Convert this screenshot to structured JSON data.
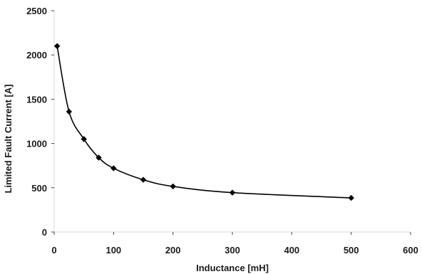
{
  "chart_data": {
    "type": "line",
    "xlabel": "Inductance [mH]",
    "ylabel": "Limited Fault Current [A]",
    "xlim": [
      0,
      600
    ],
    "ylim": [
      0,
      2500
    ],
    "x_ticks": [
      0,
      100,
      200,
      300,
      400,
      500,
      600
    ],
    "y_ticks": [
      0,
      500,
      1000,
      1500,
      2000,
      2500
    ],
    "x_tick_labels": [
      "0",
      "100",
      "200",
      "300",
      "400",
      "500",
      "600"
    ],
    "y_tick_labels": [
      "0",
      "500",
      "1000",
      "1500",
      "2000",
      "2500"
    ],
    "grid": false,
    "marker": "diamond",
    "line_color": "#000000",
    "marker_color": "#000000",
    "series": [
      {
        "x": [
          5,
          25,
          50,
          75,
          100,
          150,
          200,
          300,
          500
        ],
        "y": [
          2100,
          1360,
          1050,
          840,
          720,
          590,
          515,
          445,
          385
        ]
      }
    ]
  }
}
